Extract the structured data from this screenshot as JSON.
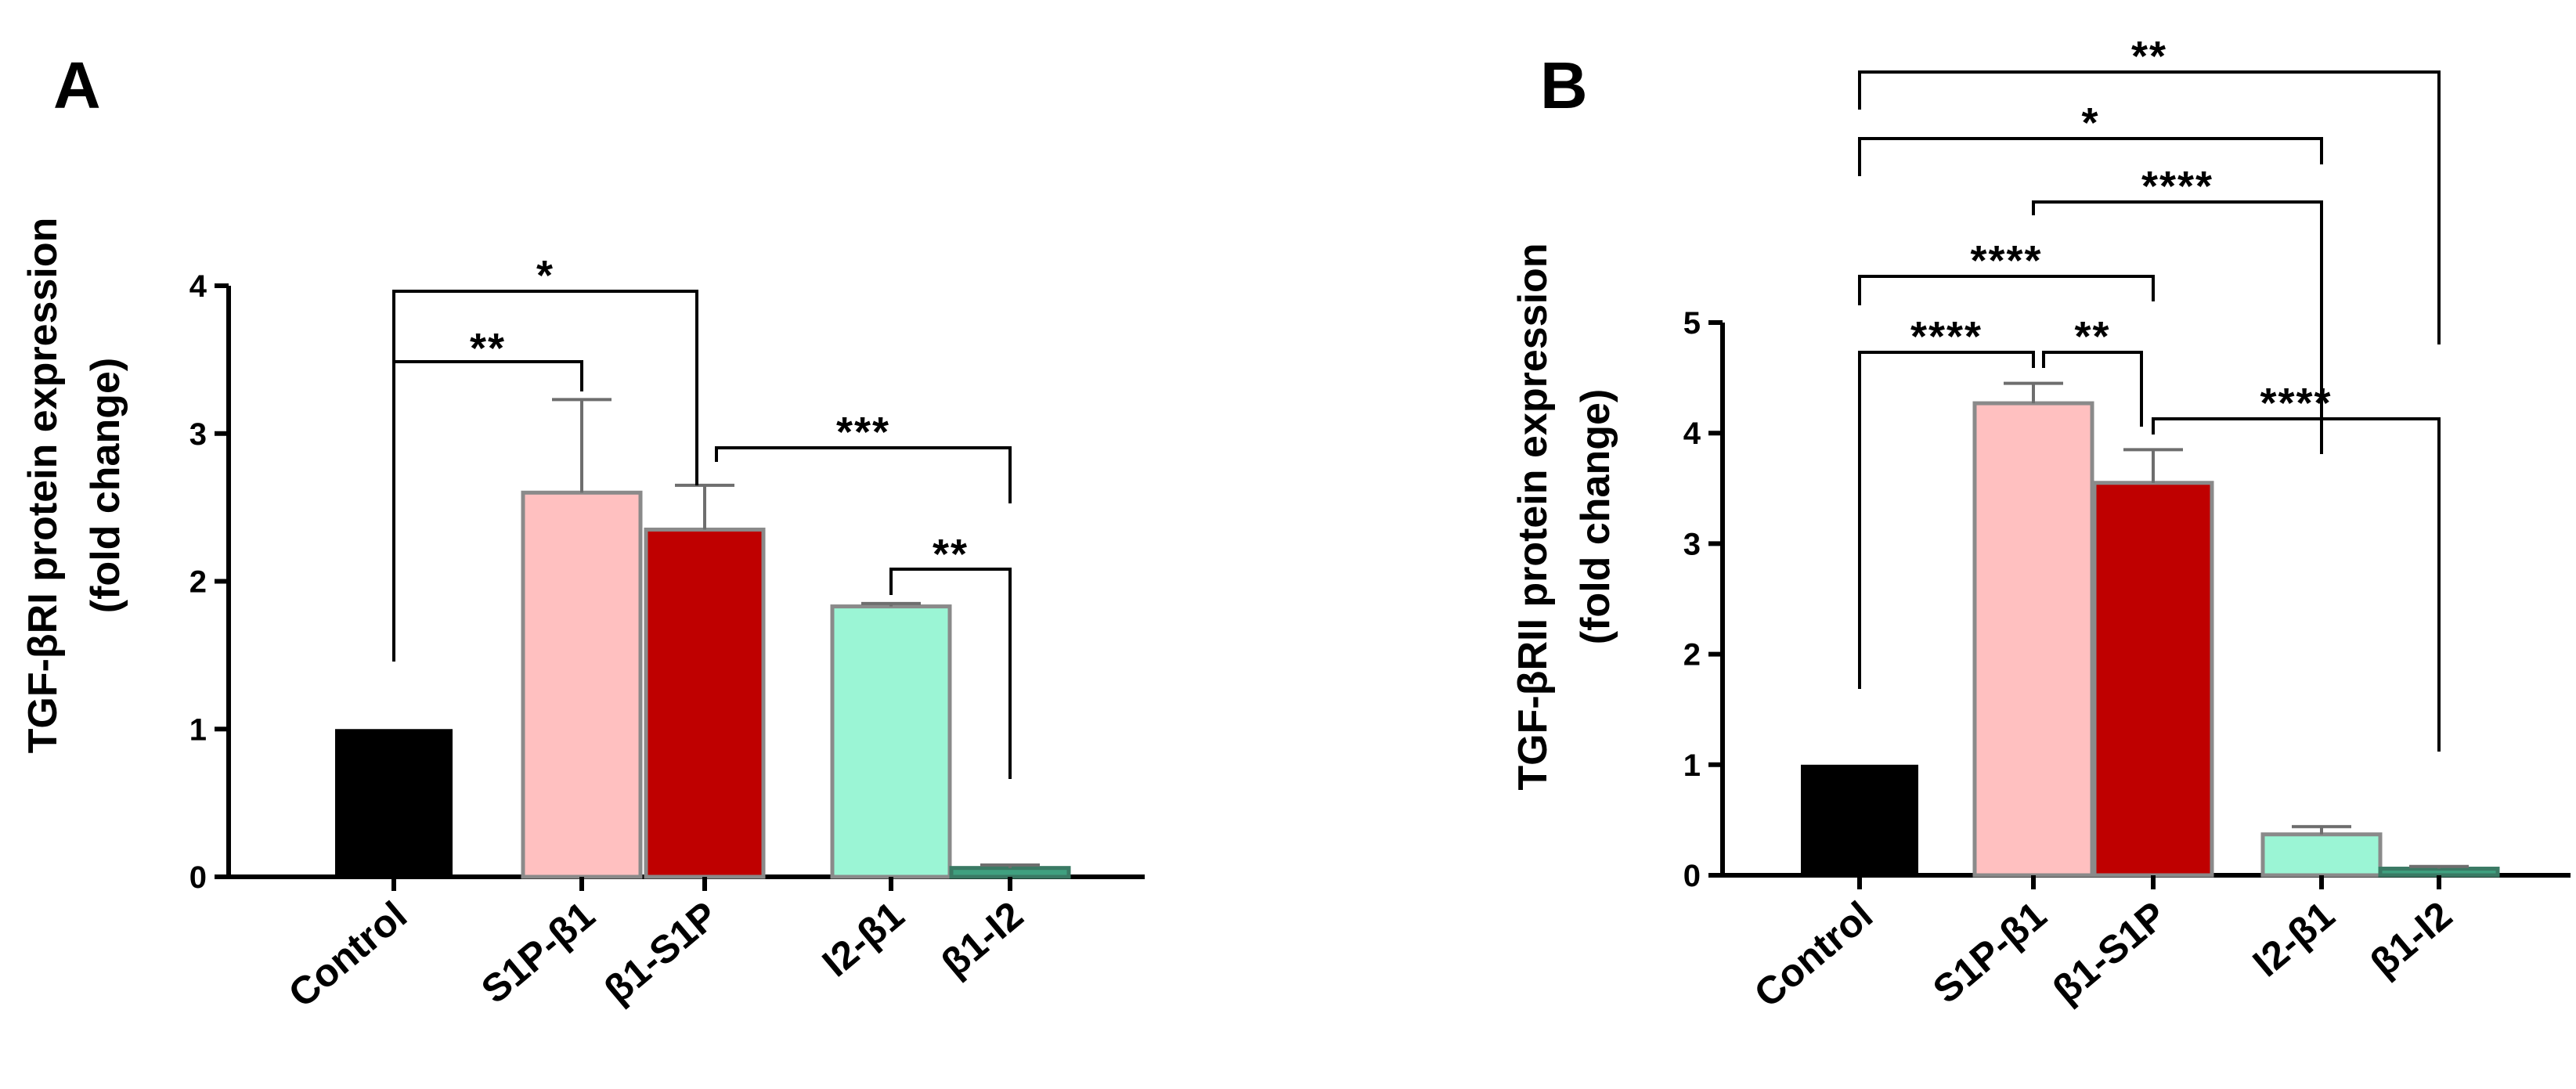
{
  "chart_data": [
    {
      "type": "bar",
      "panel": "A",
      "ylabel_line1": "TGF-βRI protein expression",
      "ylabel_line2": "(fold change)",
      "ylim": [
        0,
        4
      ],
      "yticks": [
        0,
        1,
        2,
        3,
        4
      ],
      "categories": [
        "Control",
        "S1P-β1",
        "β1-S1P",
        "I2-β1",
        "β1-I2"
      ],
      "values": [
        1.0,
        2.6,
        2.35,
        1.83,
        0.06
      ],
      "errors": [
        0,
        0.63,
        0.3,
        0.02,
        0.02
      ],
      "colors": [
        "#000000",
        "#ffc0c0",
        "#bf0000",
        "#9bf5d5",
        "#3fa07f"
      ],
      "significance": [
        {
          "from": 0,
          "to": 2,
          "label": "*"
        },
        {
          "from": 0,
          "to": 1,
          "label": "**"
        },
        {
          "from": 2,
          "to": 4,
          "label": "***"
        },
        {
          "from": 3,
          "to": 4,
          "label": "**"
        }
      ]
    },
    {
      "type": "bar",
      "panel": "B",
      "ylabel_line1": "TGF-βRII protein expression",
      "ylabel_line2": "(fold change)",
      "ylim": [
        0,
        5
      ],
      "yticks": [
        0,
        1,
        2,
        3,
        4,
        5
      ],
      "categories": [
        "Control",
        "S1P-β1",
        "β1-S1P",
        "I2-β1",
        "β1-I2"
      ],
      "values": [
        1.0,
        4.27,
        3.55,
        0.37,
        0.06
      ],
      "errors": [
        0,
        0.18,
        0.3,
        0.07,
        0.02
      ],
      "colors": [
        "#000000",
        "#ffc0c0",
        "#bf0000",
        "#9bf5d5",
        "#3fa07f"
      ],
      "significance": [
        {
          "from": 0,
          "to": 4,
          "label": "**"
        },
        {
          "from": 0,
          "to": 3,
          "label": "*"
        },
        {
          "from": 1,
          "to": 3,
          "label": "****"
        },
        {
          "from": 0,
          "to": 2,
          "label": "****"
        },
        {
          "from": 0,
          "to": 1,
          "label": "****"
        },
        {
          "from": 1,
          "to": 2,
          "label": "**"
        },
        {
          "from": 2,
          "to": 4,
          "label": "****"
        }
      ]
    }
  ]
}
